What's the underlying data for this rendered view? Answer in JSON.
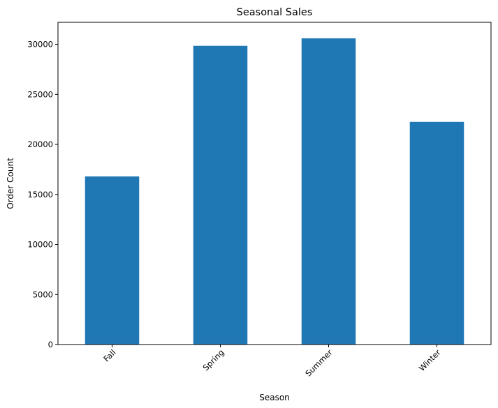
{
  "chart_data": {
    "type": "bar",
    "title": "Seasonal Sales",
    "xlabel": "Season",
    "ylabel": "Order Count",
    "categories": [
      "Fall",
      "Spring",
      "Summer",
      "Winter"
    ],
    "values": [
      16800,
      29850,
      30600,
      22250
    ],
    "ylim": [
      0,
      32200
    ],
    "yticks": [
      0,
      5000,
      10000,
      15000,
      20000,
      25000,
      30000
    ],
    "ytick_labels": [
      "0",
      "5000",
      "10000",
      "15000",
      "20000",
      "25000",
      "30000"
    ],
    "grid": false,
    "legend": "none",
    "bar_color": "#1f77b4"
  }
}
